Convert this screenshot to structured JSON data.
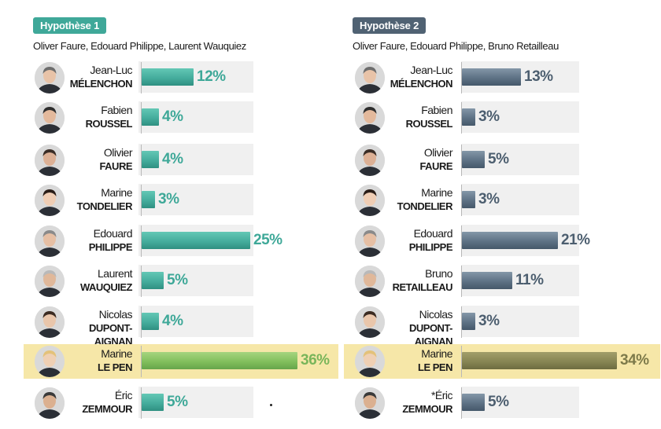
{
  "chart_data": [
    {
      "type": "bar",
      "orientation": "horizontal",
      "title": "Hypothèse 1",
      "subtitle": "Oliver Faure, Edouard Philippe, Laurent Wauquiez",
      "value_suffix": "%",
      "xlim": [
        0,
        36
      ],
      "colors": {
        "bar": "#45ad9d",
        "highlight_bar": "#82bf5d",
        "highlight_band": "#f6e7a8"
      },
      "rows": [
        {
          "first": "Jean-Luc",
          "last": "MÉLENCHON",
          "value": 12,
          "label": "12%",
          "highlight": false
        },
        {
          "first": "Fabien",
          "last": "ROUSSEL",
          "value": 4,
          "label": "4%",
          "highlight": false
        },
        {
          "first": "Olivier",
          "last": "FAURE",
          "value": 4,
          "label": "4%",
          "highlight": false
        },
        {
          "first": "Marine",
          "last": "TONDELIER",
          "value": 3,
          "label": "3%",
          "highlight": false
        },
        {
          "first": "Edouard",
          "last": "PHILIPPE",
          "value": 25,
          "label": "25%",
          "highlight": false
        },
        {
          "first": "Laurent",
          "last": "WAUQUIEZ",
          "value": 5,
          "label": "5%",
          "highlight": false
        },
        {
          "first": "Nicolas",
          "last": "DUPONT-AIGNAN",
          "value": 4,
          "label": "4%",
          "highlight": false
        },
        {
          "first": "Marine",
          "last": "LE PEN",
          "value": 36,
          "label": "36%",
          "highlight": true
        },
        {
          "first": "Éric",
          "last": "ZEMMOUR",
          "value": 5,
          "label": "5%",
          "highlight": false
        }
      ]
    },
    {
      "type": "bar",
      "orientation": "horizontal",
      "title": "Hypothèse 2",
      "subtitle": "Oliver Faure, Edouard Philippe, Bruno Retailleau",
      "value_suffix": "%",
      "xlim": [
        0,
        34
      ],
      "colors": {
        "bar": "#5e7285",
        "highlight_bar": "#878654",
        "highlight_band": "#f6e7a8"
      },
      "rows": [
        {
          "first": "Jean-Luc",
          "last": "MÉLENCHON",
          "value": 13,
          "label": "13%",
          "highlight": false
        },
        {
          "first": "Fabien",
          "last": "ROUSSEL",
          "value": 3,
          "label": "3%",
          "highlight": false
        },
        {
          "first": "Olivier",
          "last": "FAURE",
          "value": 5,
          "label": "5%",
          "highlight": false
        },
        {
          "first": "Marine",
          "last": "TONDELIER",
          "value": 3,
          "label": "3%",
          "highlight": false
        },
        {
          "first": "Edouard",
          "last": "PHILIPPE",
          "value": 21,
          "label": "21%",
          "highlight": false
        },
        {
          "first": "Bruno",
          "last": "RETAILLEAU",
          "value": 11,
          "label": "11%",
          "highlight": false
        },
        {
          "first": "Nicolas",
          "last": "DUPONT-AIGNAN",
          "value": 3,
          "label": "3%",
          "highlight": false
        },
        {
          "first": "Marine",
          "last": "LE PEN",
          "value": 34,
          "label": "34%",
          "highlight": true
        },
        {
          "first": "*Éric",
          "last": "ZEMMOUR",
          "value": 5,
          "label": "5%",
          "highlight": false
        }
      ]
    }
  ]
}
